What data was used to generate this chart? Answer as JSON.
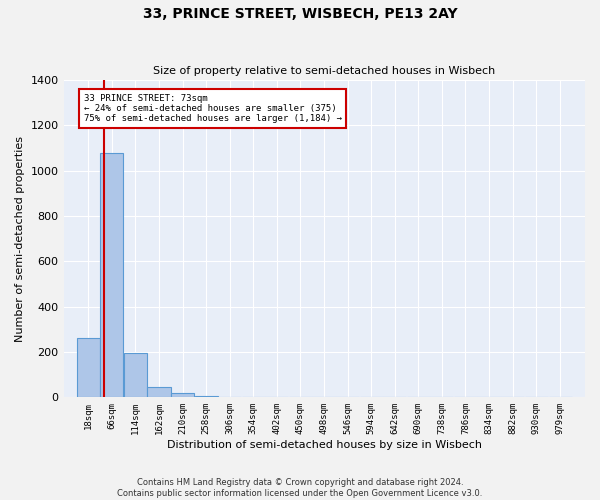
{
  "title": "33, PRINCE STREET, WISBECH, PE13 2AY",
  "subtitle": "Size of property relative to semi-detached houses in Wisbech",
  "xlabel": "Distribution of semi-detached houses by size in Wisbech",
  "ylabel": "Number of semi-detached properties",
  "footer_line1": "Contains HM Land Registry data © Crown copyright and database right 2024.",
  "footer_line2": "Contains public sector information licensed under the Open Government Licence v3.0.",
  "bins": [
    18,
    66,
    114,
    162,
    210,
    258,
    306,
    354,
    402,
    450,
    498,
    546,
    594,
    642,
    690,
    738,
    786,
    834,
    882,
    930,
    979
  ],
  "bar_heights": [
    260,
    1080,
    195,
    45,
    20,
    5,
    2,
    1,
    1,
    1,
    0,
    0,
    0,
    0,
    0,
    0,
    0,
    0,
    0,
    0,
    0
  ],
  "bar_color": "#aec6e8",
  "bar_edge_color": "#5a9ad4",
  "property_size": 73,
  "annotation_line1": "33 PRINCE STREET: 73sqm",
  "annotation_line2": "← 24% of semi-detached houses are smaller (375)",
  "annotation_line3": "75% of semi-detached houses are larger (1,184) →",
  "vline_color": "#cc0000",
  "annotation_box_color": "#cc0000",
  "ylim": [
    0,
    1400
  ],
  "yticks": [
    0,
    200,
    400,
    600,
    800,
    1000,
    1200,
    1400
  ],
  "background_color": "#e8eef8",
  "grid_color": "#ffffff",
  "xlabels": [
    "18sqm",
    "66sqm",
    "114sqm",
    "162sqm",
    "210sqm",
    "258sqm",
    "306sqm",
    "354sqm",
    "402sqm",
    "450sqm",
    "498sqm",
    "546sqm",
    "594sqm",
    "642sqm",
    "690sqm",
    "738sqm",
    "786sqm",
    "834sqm",
    "882sqm",
    "930sqm",
    "979sqm"
  ]
}
